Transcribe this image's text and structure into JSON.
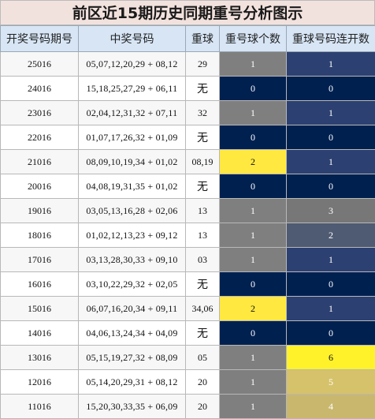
{
  "title": "前区近15期历史同期重号分析图示",
  "headers": [
    "开奖号码期号",
    "中奖号码",
    "重球",
    "重号球个数",
    "重球号码连开数"
  ],
  "colors": {
    "zero": "#002050",
    "one_gray": "#7f7f7f",
    "two_yellow": "#ffe840",
    "run1": "#2c4071",
    "run2": "#4f5a73",
    "run3": "#777777",
    "run5": "#d6c26a",
    "run4": "#c9b76d",
    "run6": "#fff22b"
  },
  "rows": [
    {
      "issue": "25016",
      "numbers": "05,07,12,20,29 + 08,12",
      "repeat": "29",
      "count": "1",
      "run": "1"
    },
    {
      "issue": "24016",
      "numbers": "15,18,25,27,29 + 06,11",
      "repeat": "无",
      "count": "0",
      "run": "0"
    },
    {
      "issue": "23016",
      "numbers": "02,04,12,31,32 + 07,11",
      "repeat": "32",
      "count": "1",
      "run": "1"
    },
    {
      "issue": "22016",
      "numbers": "01,07,17,26,32 + 01,09",
      "repeat": "无",
      "count": "0",
      "run": "0"
    },
    {
      "issue": "21016",
      "numbers": "08,09,10,19,34 + 01,02",
      "repeat": "08,19",
      "count": "2",
      "run": "1"
    },
    {
      "issue": "20016",
      "numbers": "04,08,19,31,35 + 01,02",
      "repeat": "无",
      "count": "0",
      "run": "0"
    },
    {
      "issue": "19016",
      "numbers": "03,05,13,16,28 + 02,06",
      "repeat": "13",
      "count": "1",
      "run": "3"
    },
    {
      "issue": "18016",
      "numbers": "01,02,12,13,23 + 09,12",
      "repeat": "13",
      "count": "1",
      "run": "2"
    },
    {
      "issue": "17016",
      "numbers": "03,13,28,30,33 + 09,10",
      "repeat": "03",
      "count": "1",
      "run": "1"
    },
    {
      "issue": "16016",
      "numbers": "03,10,22,29,32 + 02,05",
      "repeat": "无",
      "count": "0",
      "run": "0"
    },
    {
      "issue": "15016",
      "numbers": "06,07,16,20,34 + 09,11",
      "repeat": "34,06",
      "count": "2",
      "run": "1"
    },
    {
      "issue": "14016",
      "numbers": "04,06,13,24,34 + 04,09",
      "repeat": "无",
      "count": "0",
      "run": "0"
    },
    {
      "issue": "13016",
      "numbers": "05,15,19,27,32 + 08,09",
      "repeat": "05",
      "count": "1",
      "run": "6"
    },
    {
      "issue": "12016",
      "numbers": "05,14,20,29,31 + 08,12",
      "repeat": "20",
      "count": "1",
      "run": "5"
    },
    {
      "issue": "11016",
      "numbers": "15,20,30,33,35 + 06,09",
      "repeat": "20",
      "count": "1",
      "run": "4"
    }
  ]
}
